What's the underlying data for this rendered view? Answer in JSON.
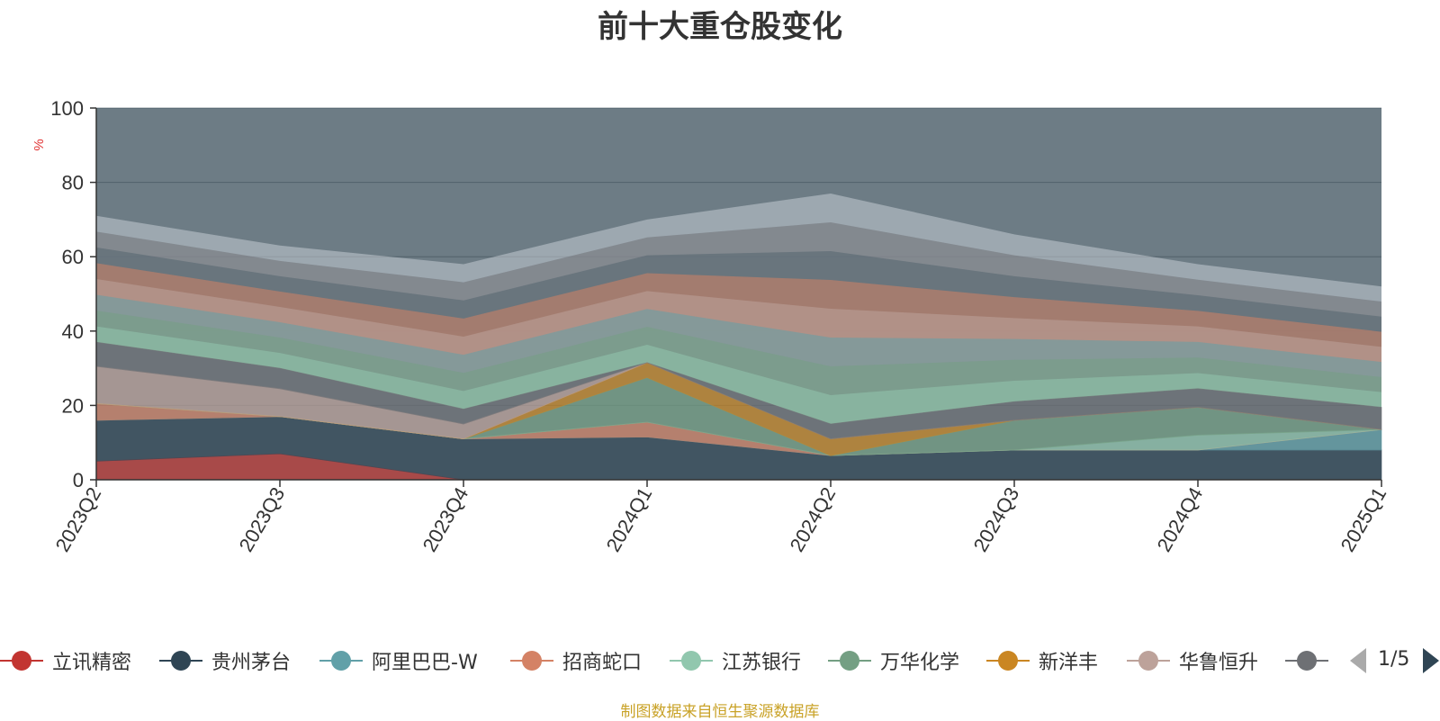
{
  "chart_data": {
    "type": "area",
    "stacked": true,
    "title": "前十大重仓股变化",
    "ylabel": "%",
    "ylim": [
      0,
      100
    ],
    "yticks": [
      0,
      20,
      40,
      60,
      80,
      100
    ],
    "categories": [
      "2023Q2",
      "2023Q3",
      "2023Q4",
      "2024Q1",
      "2024Q2",
      "2024Q3",
      "2024Q4",
      "2025Q1"
    ],
    "grid": true,
    "legend_position": "bottom",
    "series": [
      {
        "name": "立讯精密",
        "color": "#c23531",
        "values": [
          5,
          7,
          0,
          0,
          0,
          0,
          0,
          0
        ]
      },
      {
        "name": "贵州茅台",
        "color": "#2f4554",
        "values": [
          11,
          10,
          11,
          11.5,
          6.5,
          8,
          8,
          8
        ]
      },
      {
        "name": "阿里巴巴-W",
        "color": "#61a0a8",
        "values": [
          0,
          0,
          0,
          0,
          0,
          0,
          0,
          5.5
        ]
      },
      {
        "name": "招商蛇口",
        "color": "#d48265",
        "values": [
          4.5,
          0,
          0,
          4,
          0,
          0,
          0,
          0
        ]
      },
      {
        "name": "江苏银行",
        "color": "#91c7ae",
        "values": [
          0,
          0,
          0,
          0,
          0,
          0,
          4,
          0
        ]
      },
      {
        "name": "万华化学",
        "color": "#749f83",
        "values": [
          0,
          0,
          0,
          12,
          0,
          8,
          7.5,
          0
        ]
      },
      {
        "name": "新洋丰",
        "color": "#ca8622",
        "values": [
          0,
          0,
          0,
          4,
          4.5,
          0,
          0,
          0
        ]
      },
      {
        "name": "华鲁恒升",
        "color": "#bda29a",
        "values": [
          10,
          7.5,
          4,
          0,
          0,
          0,
          0,
          0
        ]
      },
      {
        "name": "",
        "color": "#6e7074",
        "values": [
          6.5,
          5.5,
          4,
          0,
          4,
          5,
          5,
          6
        ]
      }
    ]
  },
  "legend": {
    "items": [
      {
        "label": "立讯精密",
        "color": "#c23531"
      },
      {
        "label": "贵州茅台",
        "color": "#2f4554"
      },
      {
        "label": "阿里巴巴-W",
        "color": "#61a0a8"
      },
      {
        "label": "招商蛇口",
        "color": "#d48265"
      },
      {
        "label": "江苏银行",
        "color": "#91c7ae"
      },
      {
        "label": "万华化学",
        "color": "#749f83"
      },
      {
        "label": "新洋丰",
        "color": "#ca8622"
      },
      {
        "label": "华鲁恒升",
        "color": "#bda29a"
      },
      {
        "label": "",
        "color": "#6e7074"
      }
    ],
    "page": "1/5"
  },
  "footer": {
    "source_note": "制图数据来自恒生聚源数据库"
  },
  "colors": {
    "background_fill": "#546570",
    "upper_band_colors": [
      "#c4ccd3",
      "#6e7074",
      "#546570",
      "#d48265",
      "#bda29a",
      "#61a0a8",
      "#749f83",
      "#91c7ae"
    ]
  }
}
